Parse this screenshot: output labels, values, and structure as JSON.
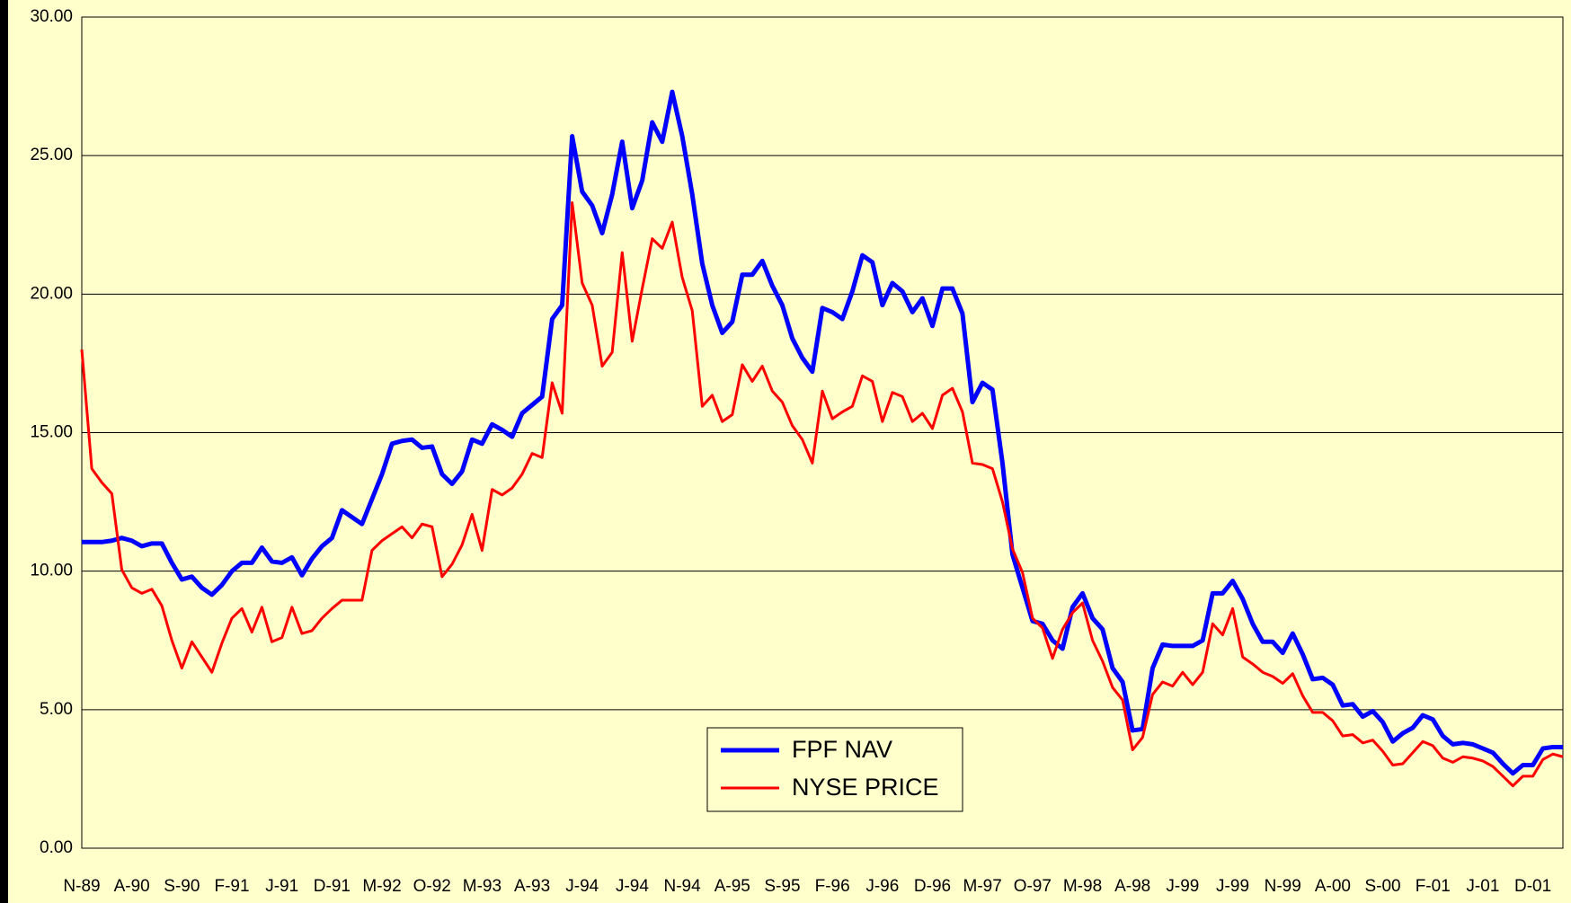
{
  "chart_data": {
    "type": "line",
    "categories": [
      "N-89",
      null,
      null,
      null,
      null,
      "A-90",
      null,
      null,
      null,
      null,
      "S-90",
      null,
      null,
      null,
      null,
      "F-91",
      null,
      null,
      null,
      null,
      "J-91",
      null,
      null,
      null,
      null,
      "D-91",
      null,
      null,
      null,
      null,
      "M-92",
      null,
      null,
      null,
      null,
      "O-92",
      null,
      null,
      null,
      null,
      "M-93",
      null,
      null,
      null,
      null,
      "A-93",
      null,
      null,
      null,
      null,
      "J-94",
      null,
      null,
      null,
      null,
      "J-94",
      null,
      null,
      null,
      null,
      "N-94",
      null,
      null,
      null,
      null,
      "A-95",
      null,
      null,
      null,
      null,
      "S-95",
      null,
      null,
      null,
      null,
      "F-96",
      null,
      null,
      null,
      null,
      "J-96",
      null,
      null,
      null,
      null,
      "D-96",
      null,
      null,
      null,
      null,
      "M-97",
      null,
      null,
      null,
      null,
      "O-97",
      null,
      null,
      null,
      null,
      "M-98",
      null,
      null,
      null,
      null,
      "A-98",
      null,
      null,
      null,
      null,
      "J-99",
      null,
      null,
      null,
      null,
      "J-99",
      null,
      null,
      null,
      null,
      "N-99",
      null,
      null,
      null,
      null,
      "A-00",
      null,
      null,
      null,
      null,
      "S-00",
      null,
      null,
      null,
      null,
      "F-01",
      null,
      null,
      null,
      null,
      "J-01",
      null,
      null,
      null,
      null,
      "D-01",
      null,
      null,
      null
    ],
    "series": [
      {
        "name": "FPF NAV",
        "color": "#0000ff",
        "values": [
          11.05,
          11.05,
          11.05,
          11.1,
          11.2,
          11.1,
          10.9,
          11.0,
          11.0,
          10.3,
          9.7,
          9.8,
          9.4,
          9.15,
          9.5,
          10.0,
          10.3,
          10.3,
          10.85,
          10.35,
          10.3,
          10.5,
          9.85,
          10.45,
          10.9,
          11.2,
          12.2,
          11.95,
          11.7,
          12.6,
          13.5,
          14.6,
          14.7,
          14.75,
          14.45,
          14.5,
          13.5,
          13.15,
          13.6,
          14.75,
          14.6,
          15.3,
          15.1,
          14.85,
          15.7,
          16.0,
          16.3,
          19.1,
          19.6,
          25.7,
          23.7,
          23.2,
          22.2,
          23.6,
          25.5,
          23.1,
          24.1,
          26.2,
          25.5,
          27.3,
          25.7,
          23.6,
          21.1,
          19.6,
          18.6,
          19.0,
          20.7,
          20.7,
          21.2,
          20.3,
          19.6,
          18.4,
          17.7,
          17.2,
          19.5,
          19.35,
          19.1,
          20.1,
          21.4,
          21.15,
          19.6,
          20.4,
          20.1,
          19.35,
          19.85,
          18.85,
          20.2,
          20.2,
          19.3,
          16.1,
          16.8,
          16.55,
          13.9,
          10.6,
          9.4,
          8.2,
          8.1,
          7.5,
          7.2,
          8.7,
          9.2,
          8.3,
          7.9,
          6.5,
          6.0,
          4.25,
          4.3,
          6.5,
          7.35,
          7.3,
          7.3,
          7.3,
          7.5,
          9.2,
          9.2,
          9.65,
          9.0,
          8.1,
          7.45,
          7.45,
          7.05,
          7.75,
          7.0,
          6.1,
          6.15,
          5.9,
          5.15,
          5.2,
          4.75,
          4.95,
          4.55,
          3.85,
          4.15,
          4.35,
          4.8,
          4.65,
          4.05,
          3.75,
          3.8,
          3.75,
          3.6,
          3.45,
          3.05,
          2.7,
          3.0,
          3.0,
          3.6,
          3.65,
          3.65
        ]
      },
      {
        "name": "NYSE PRICE",
        "color": "#ff0000",
        "values": [
          18.0,
          13.7,
          13.2,
          12.8,
          10.05,
          9.4,
          9.2,
          9.35,
          8.75,
          7.5,
          6.5,
          7.45,
          6.9,
          6.35,
          7.4,
          8.3,
          8.65,
          7.8,
          8.7,
          7.45,
          7.6,
          8.7,
          7.75,
          7.85,
          8.3,
          8.65,
          8.95,
          8.95,
          8.95,
          10.75,
          11.1,
          11.35,
          11.6,
          11.2,
          11.7,
          11.6,
          9.8,
          10.25,
          10.95,
          12.05,
          10.75,
          12.95,
          12.75,
          13.0,
          13.5,
          14.25,
          14.1,
          16.8,
          15.7,
          23.3,
          20.4,
          19.6,
          17.4,
          17.9,
          21.5,
          18.3,
          20.2,
          22.0,
          21.65,
          22.6,
          20.6,
          19.4,
          15.95,
          16.35,
          15.4,
          15.65,
          17.45,
          16.85,
          17.4,
          16.5,
          16.1,
          15.25,
          14.75,
          13.9,
          16.5,
          15.5,
          15.75,
          15.95,
          17.05,
          16.85,
          15.4,
          16.45,
          16.3,
          15.4,
          15.7,
          15.15,
          16.35,
          16.6,
          15.75,
          13.9,
          13.85,
          13.7,
          12.5,
          10.8,
          9.95,
          8.3,
          7.95,
          6.85,
          7.9,
          8.5,
          8.85,
          7.5,
          6.75,
          5.8,
          5.35,
          3.55,
          4.0,
          5.55,
          6.0,
          5.85,
          6.35,
          5.9,
          6.35,
          8.1,
          7.7,
          8.65,
          6.9,
          6.65,
          6.35,
          6.2,
          5.95,
          6.3,
          5.5,
          4.9,
          4.9,
          4.6,
          4.05,
          4.1,
          3.8,
          3.9,
          3.5,
          3.0,
          3.05,
          3.45,
          3.85,
          3.7,
          3.25,
          3.1,
          3.3,
          3.25,
          3.15,
          2.95,
          2.6,
          2.25,
          2.6,
          2.6,
          3.2,
          3.4,
          3.3
        ]
      }
    ],
    "ylim": [
      0,
      30
    ],
    "yticks": [
      {
        "value": 0,
        "label": "0.00"
      },
      {
        "value": 5,
        "label": "5.00"
      },
      {
        "value": 10,
        "label": "10.00"
      },
      {
        "value": 15,
        "label": "15.00"
      },
      {
        "value": 20,
        "label": "20.00"
      },
      {
        "value": 25,
        "label": "25.00"
      },
      {
        "value": 30,
        "label": "30.00"
      }
    ],
    "grid": true,
    "legend": "lower center"
  }
}
